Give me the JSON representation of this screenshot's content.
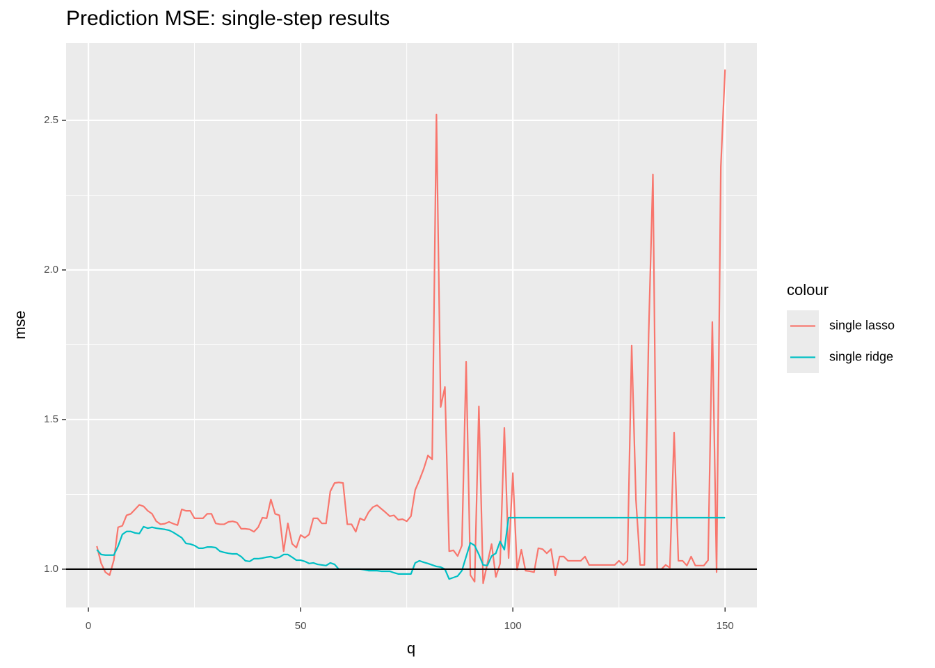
{
  "chart_data": {
    "type": "line",
    "title": "Prediction MSE: single-step results",
    "x_label": "q",
    "y_label": "mse",
    "legend_title": "colour",
    "legend_position": "right",
    "xlim": [
      -5.25,
      157.5
    ],
    "ylim": [
      0.872,
      2.758
    ],
    "xticks": [
      0,
      50,
      100,
      150
    ],
    "yticks": [
      {
        "value": 1,
        "label": "1.0"
      },
      {
        "value": 1.5,
        "label": "1.5"
      },
      {
        "value": 2,
        "label": "2.0"
      },
      {
        "value": 2.5,
        "label": "2.5"
      }
    ],
    "xminor": [
      25,
      75,
      125
    ],
    "yminor": [
      1.25,
      1.75,
      2.25
    ],
    "grid": true,
    "hline": 1,
    "hline_color": "#000000",
    "x": [
      2,
      3,
      4,
      5,
      6,
      7,
      8,
      9,
      10,
      11,
      12,
      13,
      14,
      15,
      16,
      17,
      18,
      19,
      20,
      21,
      22,
      23,
      24,
      25,
      26,
      27,
      28,
      29,
      30,
      31,
      32,
      33,
      34,
      35,
      36,
      37,
      38,
      39,
      40,
      41,
      42,
      43,
      44,
      45,
      46,
      47,
      48,
      49,
      50,
      51,
      52,
      53,
      54,
      55,
      56,
      57,
      58,
      59,
      60,
      61,
      62,
      63,
      64,
      65,
      66,
      67,
      68,
      69,
      70,
      71,
      72,
      73,
      74,
      75,
      76,
      77,
      78,
      79,
      80,
      81,
      82,
      83,
      84,
      85,
      86,
      87,
      88,
      89,
      90,
      91,
      92,
      93,
      94,
      95,
      96,
      97,
      98,
      99,
      100,
      101,
      102,
      103,
      104,
      105,
      106,
      107,
      108,
      109,
      110,
      111,
      112,
      113,
      114,
      115,
      116,
      117,
      118,
      119,
      120,
      121,
      122,
      123,
      124,
      125,
      126,
      127,
      128,
      129,
      130,
      131,
      132,
      133,
      134,
      135,
      136,
      137,
      138,
      139,
      140,
      141,
      142,
      143,
      144,
      145,
      146,
      147,
      148,
      149,
      150
    ],
    "series": [
      {
        "name": "single lasso",
        "color": "#f8766d",
        "values": [
          1.077,
          1.02,
          0.99,
          0.98,
          1.03,
          1.14,
          1.145,
          1.18,
          1.185,
          1.2,
          1.215,
          1.21,
          1.195,
          1.185,
          1.16,
          1.15,
          1.152,
          1.158,
          1.152,
          1.147,
          1.2,
          1.195,
          1.195,
          1.17,
          1.17,
          1.17,
          1.185,
          1.185,
          1.153,
          1.15,
          1.15,
          1.158,
          1.16,
          1.156,
          1.135,
          1.135,
          1.133,
          1.125,
          1.14,
          1.172,
          1.17,
          1.233,
          1.185,
          1.18,
          1.06,
          1.153,
          1.085,
          1.072,
          1.114,
          1.105,
          1.116,
          1.17,
          1.17,
          1.153,
          1.153,
          1.26,
          1.288,
          1.29,
          1.288,
          1.15,
          1.15,
          1.125,
          1.17,
          1.163,
          1.19,
          1.207,
          1.214,
          1.202,
          1.19,
          1.177,
          1.18,
          1.165,
          1.167,
          1.16,
          1.177,
          1.265,
          1.298,
          1.335,
          1.38,
          1.367,
          2.519,
          1.542,
          1.609,
          1.06,
          1.063,
          1.044,
          1.079,
          1.693,
          0.98,
          0.958,
          1.544,
          0.953,
          1.019,
          1.084,
          0.974,
          1.019,
          1.472,
          1.037,
          1.321,
          0.998,
          1.065,
          0.995,
          0.993,
          0.99,
          1.07,
          1.067,
          1.053,
          1.067,
          0.979,
          1.042,
          1.042,
          1.028,
          1.028,
          1.028,
          1.028,
          1.042,
          1.014,
          1.014,
          1.014,
          1.014,
          1.014,
          1.014,
          1.014,
          1.028,
          1.014,
          1.028,
          1.747,
          1.233,
          1.014,
          1.014,
          1.786,
          2.319,
          1.0,
          1.0,
          1.014,
          1.005,
          1.456,
          1.028,
          1.028,
          1.012,
          1.042,
          1.012,
          1.012,
          1.012,
          1.03,
          1.826,
          0.99,
          2.344,
          2.67
        ]
      },
      {
        "name": "single ridge",
        "color": "#00bfc4",
        "values": [
          1.065,
          1.049,
          1.047,
          1.047,
          1.047,
          1.077,
          1.116,
          1.126,
          1.126,
          1.121,
          1.119,
          1.142,
          1.137,
          1.14,
          1.137,
          1.135,
          1.133,
          1.13,
          1.123,
          1.114,
          1.105,
          1.086,
          1.084,
          1.079,
          1.07,
          1.07,
          1.074,
          1.074,
          1.072,
          1.06,
          1.056,
          1.053,
          1.051,
          1.051,
          1.042,
          1.028,
          1.026,
          1.035,
          1.035,
          1.037,
          1.04,
          1.042,
          1.037,
          1.04,
          1.049,
          1.049,
          1.04,
          1.03,
          1.03,
          1.026,
          1.019,
          1.021,
          1.016,
          1.014,
          1.012,
          1.021,
          1.016,
          1.0,
          1.0,
          1.0,
          1.0,
          1.0,
          1.0,
          0.998,
          0.995,
          0.995,
          0.995,
          0.993,
          0.993,
          0.993,
          0.988,
          0.984,
          0.984,
          0.984,
          0.984,
          1.021,
          1.028,
          1.023,
          1.019,
          1.014,
          1.009,
          1.007,
          1.0,
          0.967,
          0.972,
          0.977,
          0.995,
          1.042,
          1.088,
          1.079,
          1.049,
          1.014,
          1.012,
          1.044,
          1.053,
          1.093,
          1.065,
          1.172,
          1.172,
          1.172,
          1.172,
          1.172,
          1.172,
          1.172,
          1.172,
          1.172,
          1.172,
          1.172,
          1.172,
          1.172,
          1.172,
          1.172,
          1.172,
          1.172,
          1.172,
          1.172,
          1.172,
          1.172,
          1.172,
          1.172,
          1.172,
          1.172,
          1.172,
          1.172,
          1.172,
          1.172,
          1.172,
          1.172,
          1.172,
          1.172,
          1.172,
          1.172,
          1.172,
          1.172,
          1.172,
          1.172,
          1.172,
          1.172,
          1.172,
          1.172,
          1.172,
          1.172,
          1.172,
          1.172,
          1.172,
          1.172,
          1.172,
          1.172,
          1.172
        ]
      }
    ]
  }
}
